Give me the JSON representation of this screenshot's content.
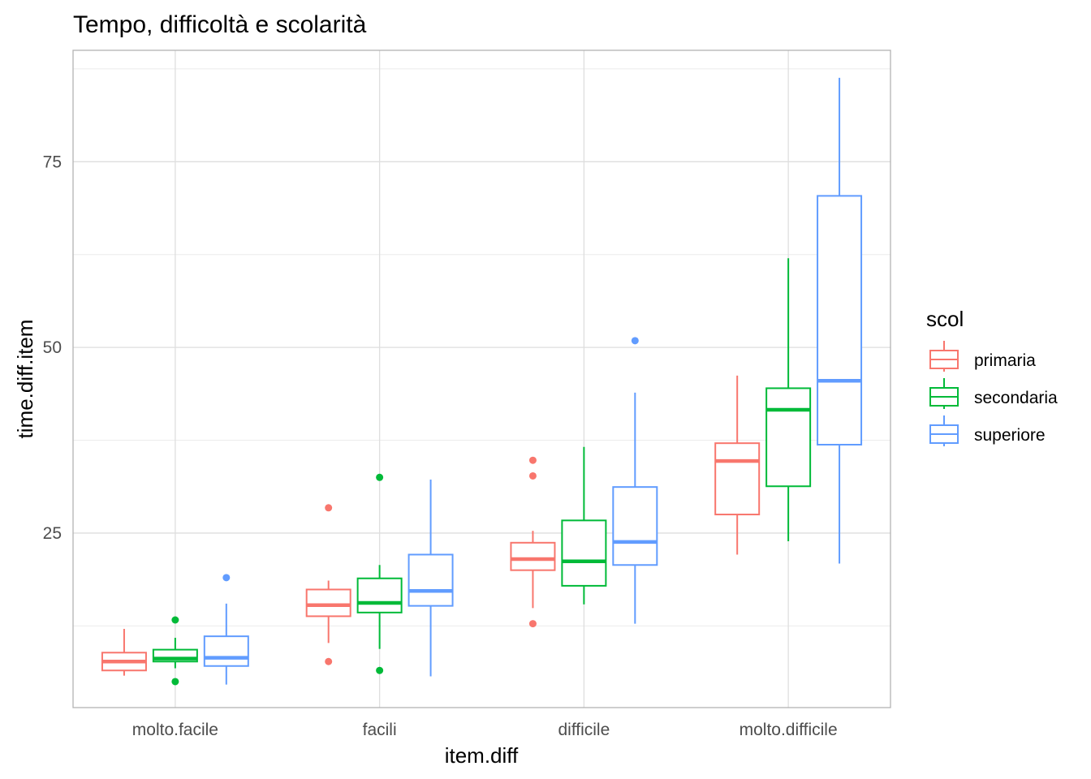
{
  "chart_data": {
    "type": "boxplot",
    "title": "Tempo, difficoltà e scolarità",
    "xlabel": "item.diff",
    "ylabel": "time.diff.item",
    "categories": [
      "molto.facile",
      "facili",
      "difficile",
      "molto.difficile"
    ],
    "y_ticks": [
      25,
      50,
      75
    ],
    "ylim": [
      1.5,
      90
    ],
    "grid": true,
    "legend": {
      "title": "scol",
      "position": "right"
    },
    "series": [
      {
        "name": "primaria",
        "color": "#F8766D",
        "boxes": [
          {
            "min": 5.8,
            "q1": 6.5,
            "median": 7.7,
            "q3": 8.9,
            "max": 12.1,
            "outliers": []
          },
          {
            "min": 10.2,
            "q1": 13.8,
            "median": 15.3,
            "q3": 17.4,
            "max": 18.6,
            "outliers": [
              7.7,
              28.4
            ]
          },
          {
            "min": 14.9,
            "q1": 20.0,
            "median": 21.5,
            "q3": 23.7,
            "max": 25.3,
            "outliers": [
              12.8,
              32.7,
              34.8
            ]
          },
          {
            "min": 22.1,
            "q1": 27.5,
            "median": 34.7,
            "q3": 37.1,
            "max": 46.2,
            "outliers": []
          }
        ]
      },
      {
        "name": "secondaria",
        "color": "#00BA38",
        "boxes": [
          {
            "min": 6.8,
            "q1": 7.7,
            "median": 8.1,
            "q3": 9.3,
            "max": 10.9,
            "outliers": [
              13.3,
              5.0
            ]
          },
          {
            "min": 9.4,
            "q1": 14.3,
            "median": 15.6,
            "q3": 18.9,
            "max": 20.7,
            "outliers": [
              32.5,
              6.5
            ]
          },
          {
            "min": 15.4,
            "q1": 17.9,
            "median": 21.2,
            "q3": 26.7,
            "max": 36.6,
            "outliers": []
          },
          {
            "min": 23.9,
            "q1": 31.3,
            "median": 41.6,
            "q3": 44.5,
            "max": 62.0,
            "outliers": []
          }
        ]
      },
      {
        "name": "superiore",
        "color": "#619CFF",
        "boxes": [
          {
            "min": 4.6,
            "q1": 7.1,
            "median": 8.2,
            "q3": 11.1,
            "max": 15.5,
            "outliers": [
              19.0
            ]
          },
          {
            "min": 5.7,
            "q1": 15.2,
            "median": 17.2,
            "q3": 22.1,
            "max": 32.2,
            "outliers": []
          },
          {
            "min": 12.8,
            "q1": 20.7,
            "median": 23.8,
            "q3": 31.2,
            "max": 43.9,
            "outliers": [
              50.9
            ]
          },
          {
            "min": 20.9,
            "q1": 36.9,
            "median": 45.5,
            "q3": 70.4,
            "max": 86.3,
            "outliers": []
          }
        ]
      }
    ]
  }
}
